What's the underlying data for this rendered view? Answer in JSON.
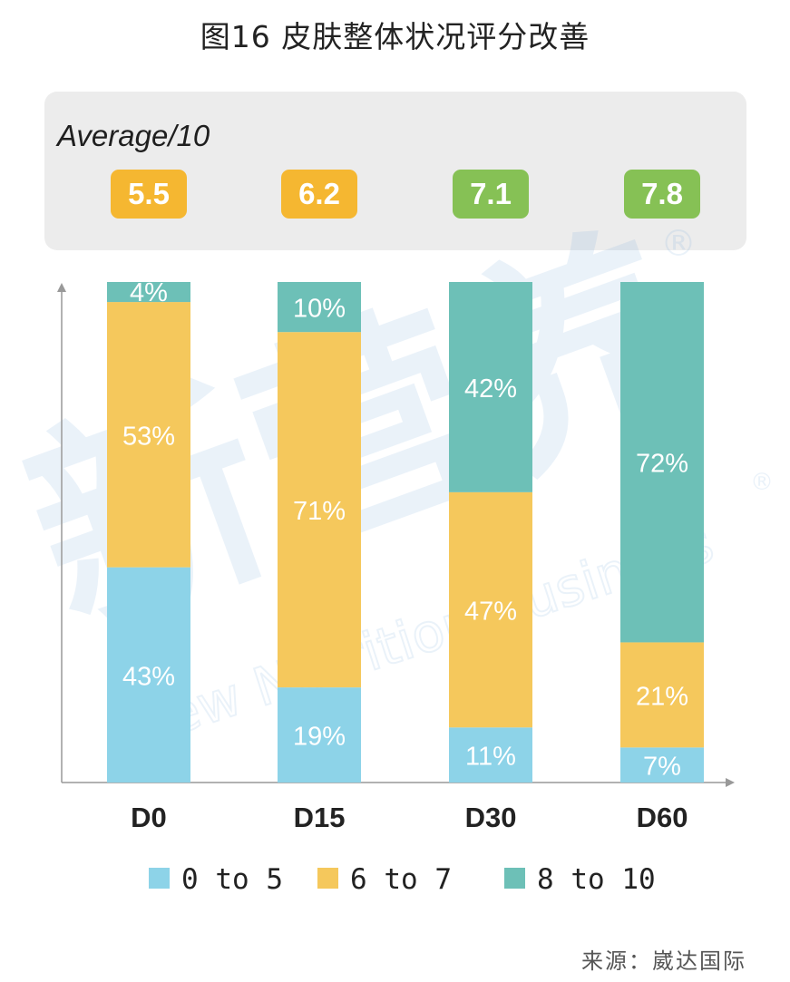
{
  "title": "图16 皮肤整体状况评分改善",
  "average_label": "Average/10",
  "source": "来源：崴达国际",
  "watermark": {
    "brand": "新营养",
    "english": "New Nutrition Business",
    "mark": "®"
  },
  "colors": {
    "low": "#8dd3e8",
    "mid": "#f5c85c",
    "high": "#6dc0b7",
    "badge_orange": "#f5b731",
    "badge_green": "#86c155",
    "axis": "#999999"
  },
  "chart_data": {
    "type": "bar",
    "stacked": true,
    "normalized": true,
    "categories": [
      "D0",
      "D15",
      "D30",
      "D60"
    ],
    "series": [
      {
        "name": "0 to 5",
        "values": [
          43,
          19,
          11,
          7
        ],
        "color_key": "low"
      },
      {
        "name": "6 to 7",
        "values": [
          53,
          71,
          47,
          21
        ],
        "color_key": "mid"
      },
      {
        "name": "8 to 10",
        "values": [
          4,
          10,
          42,
          72
        ],
        "color_key": "high"
      }
    ],
    "averages": [
      {
        "value": "5.5",
        "color_key": "badge_orange"
      },
      {
        "value": "6.2",
        "color_key": "badge_orange"
      },
      {
        "value": "7.1",
        "color_key": "badge_green"
      },
      {
        "value": "7.8",
        "color_key": "badge_green"
      }
    ],
    "value_suffix": "%",
    "ylim": [
      0,
      100
    ],
    "legend_position": "bottom",
    "grid": false
  }
}
